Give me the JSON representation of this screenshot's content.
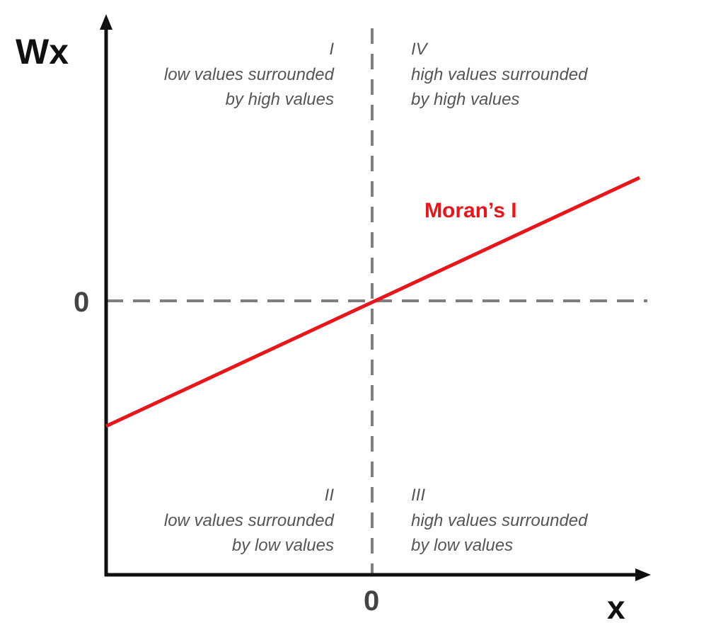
{
  "axes": {
    "y_label": "Wx",
    "x_label": "x",
    "y_zero": "0",
    "x_zero": "0"
  },
  "quadrants": {
    "top_left": {
      "numeral": "I",
      "line1": "low values surrounded",
      "line2": "by high values"
    },
    "top_right": {
      "numeral": "IV",
      "line1": "high values surrounded",
      "line2": "by high values"
    },
    "bottom_left": {
      "numeral": "II",
      "line1": "low values surrounded",
      "line2": "by low values"
    },
    "bottom_right": {
      "numeral": "III",
      "line1": "high values surrounded",
      "line2": "by low values"
    }
  },
  "regression_line": {
    "label": "Moran’s I",
    "color": "#e8161b"
  },
  "colors": {
    "axis": "#111111",
    "dashed": "#7f7f7f",
    "quadrant_text": "#555555",
    "zero_label": "#444444"
  }
}
